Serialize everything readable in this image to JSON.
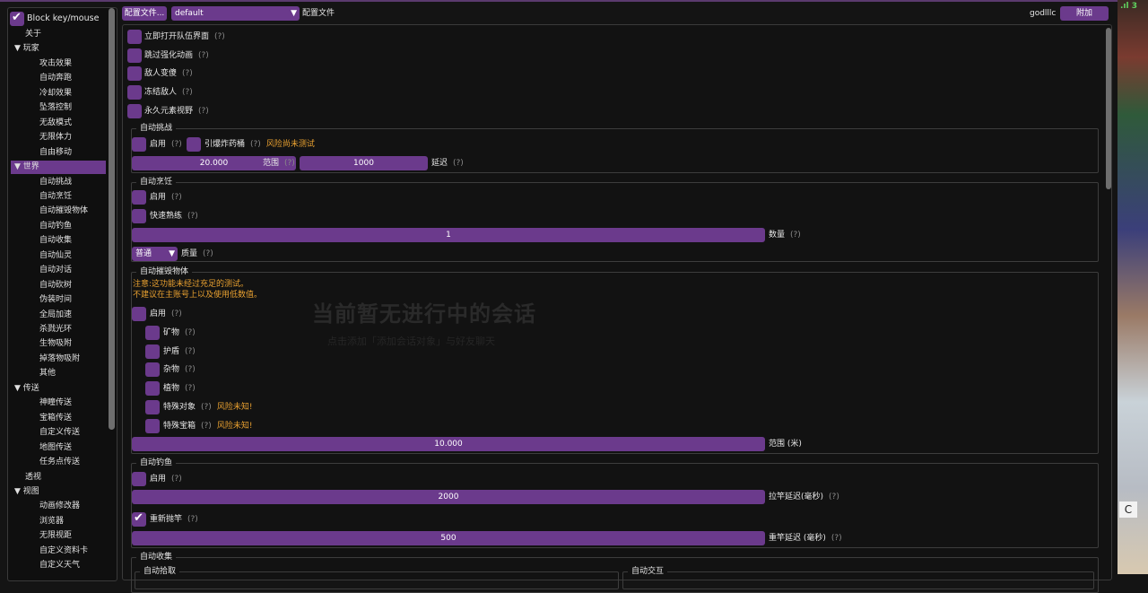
{
  "colors": {
    "accent": "#6b3a8c",
    "warning": "#e8a030",
    "background": "#141414"
  },
  "sidebar": {
    "block_label": "Block key/mouse",
    "block_checked": true,
    "items": [
      {
        "label": "关于",
        "level": 0
      },
      {
        "label": "▼ 玩家",
        "level": 0
      },
      {
        "label": "攻击效果",
        "level": 1
      },
      {
        "label": "自动奔跑",
        "level": 1
      },
      {
        "label": "冷却效果",
        "level": 1
      },
      {
        "label": "坠落控制",
        "level": 1
      },
      {
        "label": "无敌模式",
        "level": 1
      },
      {
        "label": "无限体力",
        "level": 1
      },
      {
        "label": "自由移动",
        "level": 1
      },
      {
        "label": "▼ 世界",
        "level": 0,
        "selected": true
      },
      {
        "label": "自动挑战",
        "level": 1
      },
      {
        "label": "自动烹饪",
        "level": 1
      },
      {
        "label": "自动摧毁物体",
        "level": 1
      },
      {
        "label": "自动钓鱼",
        "level": 1
      },
      {
        "label": "自动收集",
        "level": 1
      },
      {
        "label": "自动仙灵",
        "level": 1
      },
      {
        "label": "自动对话",
        "level": 1
      },
      {
        "label": "自动砍树",
        "level": 1
      },
      {
        "label": "伪装时间",
        "level": 1
      },
      {
        "label": "全局加速",
        "level": 1
      },
      {
        "label": "杀戮光环",
        "level": 1
      },
      {
        "label": "生物吸附",
        "level": 1
      },
      {
        "label": "掉落物吸附",
        "level": 1
      },
      {
        "label": "其他",
        "level": 1
      },
      {
        "label": "▼ 传送",
        "level": 0
      },
      {
        "label": "神瞳传送",
        "level": 1
      },
      {
        "label": "宝箱传送",
        "level": 1
      },
      {
        "label": "自定义传送",
        "level": 1
      },
      {
        "label": "地图传送",
        "level": 1
      },
      {
        "label": "任务点传送",
        "level": 1
      },
      {
        "label": "透视",
        "level": 0
      },
      {
        "label": "▼ 视图",
        "level": 0
      },
      {
        "label": "动画修改器",
        "level": 1
      },
      {
        "label": "浏览器",
        "level": 1
      },
      {
        "label": "无限视距",
        "level": 1
      },
      {
        "label": "自定义资料卡",
        "level": 1
      },
      {
        "label": "自定义天气",
        "level": 1
      }
    ]
  },
  "topbar": {
    "config_button": "配置文件...",
    "config_value": "default",
    "config_label": "配置文件",
    "user": "godlllc",
    "attach_button": "附加"
  },
  "help": "(?)",
  "main": {
    "toggles": [
      {
        "label": "立即打开队伍界面"
      },
      {
        "label": "跳过强化动画"
      },
      {
        "label": "敌人变傻"
      },
      {
        "label": "冻结敌人"
      },
      {
        "label": "永久元素视野"
      }
    ],
    "auto_challenge": {
      "title": "自动挑战",
      "enable": "启用",
      "bomb": "引爆炸药桶",
      "bomb_warning": "风险尚未测试",
      "range_value": "20.000",
      "range_label": "范围",
      "delay_value": "1000",
      "delay_label": "延迟"
    },
    "auto_cook": {
      "title": "自动烹饪",
      "enable": "启用",
      "fast": "快速熟练",
      "count_value": "1",
      "count_label": "数量",
      "quality_value": "普通",
      "quality_label": "质量"
    },
    "auto_destroy": {
      "title": "自动摧毁物体",
      "note1": "注意:这功能未经过充足的测试。",
      "note2": "不建议在主账号上以及使用低数值。",
      "enable": "启用",
      "items": [
        {
          "label": "矿物"
        },
        {
          "label": "护盾"
        },
        {
          "label": "杂物"
        },
        {
          "label": "植物"
        },
        {
          "label": "特殊对象",
          "warning": "风险未知!"
        },
        {
          "label": "特殊宝箱",
          "warning": "风险未知!"
        }
      ],
      "range_value": "10.000",
      "range_label": "范围 (米)"
    },
    "auto_fish": {
      "title": "自动钓鱼",
      "enable": "启用",
      "pull_value": "2000",
      "pull_label": "拉竿延迟(毫秒)",
      "recast": "重新抛竿",
      "recast_checked": true,
      "recast_value": "500",
      "recast_label": "重竿延迟 (毫秒)"
    },
    "auto_collect": {
      "title": "自动收集",
      "pickup": "自动拾取",
      "interact": "自动交互"
    }
  },
  "background": {
    "title": "当前暂无进行中的会话",
    "subtitle": "点击添加「添加会话对象」与好友聊天"
  },
  "game": {
    "badge": "C",
    "signal": ".ıl 3"
  }
}
